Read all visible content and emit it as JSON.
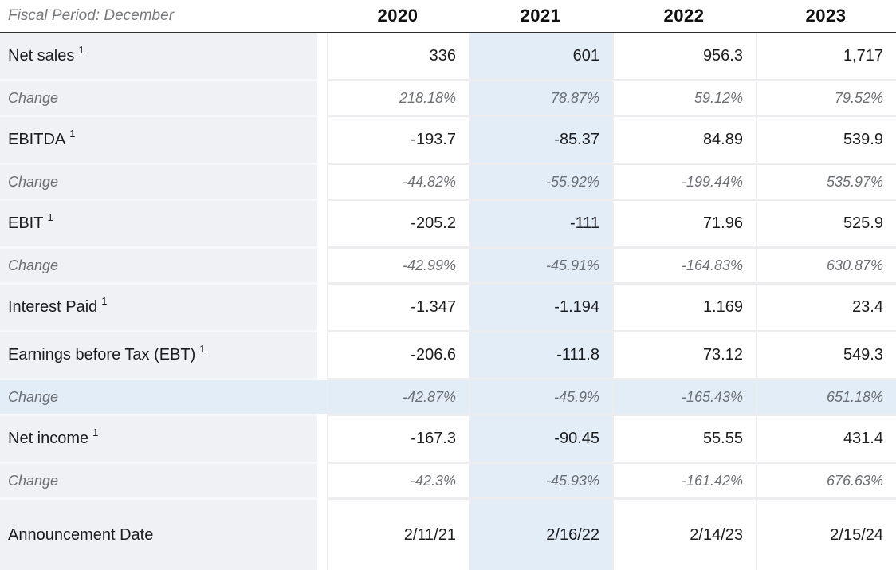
{
  "table": {
    "header": {
      "fiscal_period_label": "Fiscal Period: December",
      "years": [
        "2020",
        "2021",
        "2022",
        "2023"
      ]
    },
    "highlighted_column": "2021",
    "rows": [
      {
        "label": "Net sales",
        "superscript": "1",
        "type": "metric",
        "values": [
          "336",
          "601",
          "956.3",
          "1,717"
        ]
      },
      {
        "label": "Change",
        "type": "change",
        "values": [
          "218.18%",
          "78.87%",
          "59.12%",
          "79.52%"
        ]
      },
      {
        "label": "EBITDA",
        "superscript": "1",
        "type": "metric",
        "values": [
          "-193.7",
          "-85.37",
          "84.89",
          "539.9"
        ]
      },
      {
        "label": "Change",
        "type": "change",
        "values": [
          "-44.82%",
          "-55.92%",
          "-199.44%",
          "535.97%"
        ]
      },
      {
        "label": "EBIT",
        "superscript": "1",
        "type": "metric",
        "values": [
          "-205.2",
          "-111",
          "71.96",
          "525.9"
        ]
      },
      {
        "label": "Change",
        "type": "change",
        "values": [
          "-42.99%",
          "-45.91%",
          "-164.83%",
          "630.87%"
        ]
      },
      {
        "label": "Interest Paid",
        "superscript": "1",
        "type": "metric",
        "values": [
          "-1.347",
          "-1.194",
          "1.169",
          "23.4"
        ]
      },
      {
        "label": "Earnings before Tax (EBT)",
        "superscript": "1",
        "type": "metric",
        "values": [
          "-206.6",
          "-111.8",
          "73.12",
          "549.3"
        ]
      },
      {
        "label": "Change",
        "type": "change",
        "highlighted": true,
        "values": [
          "-42.87%",
          "-45.9%",
          "-165.43%",
          "651.18%"
        ]
      },
      {
        "label": "Net income",
        "superscript": "1",
        "type": "metric",
        "values": [
          "-167.3",
          "-90.45",
          "55.55",
          "431.4"
        ]
      },
      {
        "label": "Change",
        "type": "change",
        "values": [
          "-42.3%",
          "-45.93%",
          "-161.42%",
          "676.63%"
        ]
      },
      {
        "label": "Announcement Date",
        "type": "metric",
        "values": [
          "2/11/21",
          "2/16/22",
          "2/14/23",
          "2/15/24"
        ]
      }
    ],
    "colors": {
      "label_bg": "#eff1f4",
      "highlight_bg": "#e3edf8",
      "text": "#1d1d1f",
      "change_text": "#6c7074",
      "border_light": "#ededef",
      "label_separator": "#f7f8fa",
      "header_border": "#2e2e2e"
    }
  }
}
